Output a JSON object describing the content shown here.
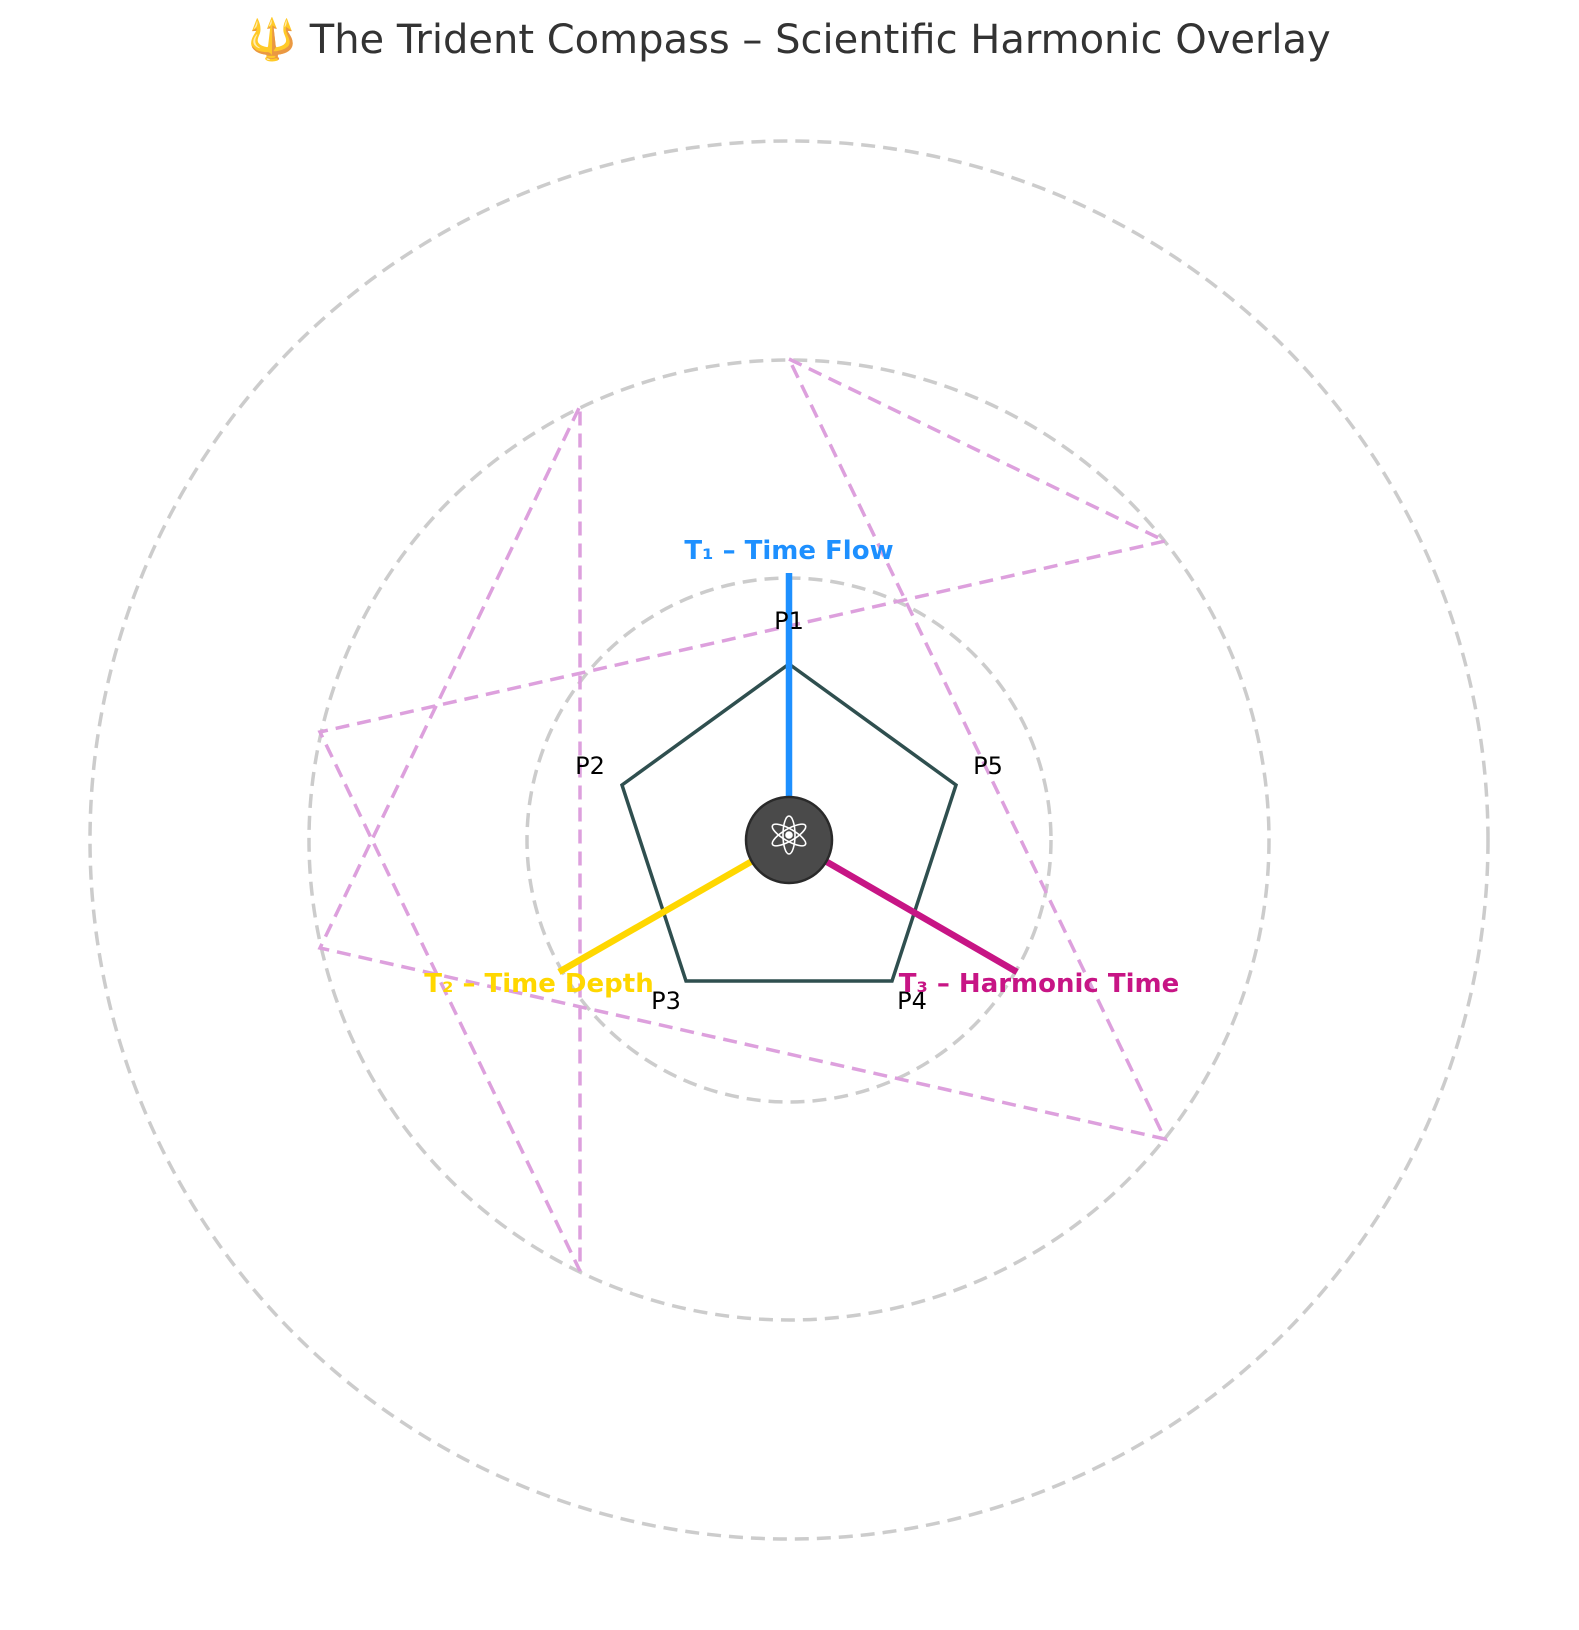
{
  "title": "🔱 The Trident Compass – Scientific Harmonic Overlay",
  "center_icon": "atom-icon",
  "pentagon": {
    "vertex_labels": [
      "P1",
      "P2",
      "P3",
      "P4",
      "P5"
    ],
    "color": "#2f4f4f"
  },
  "axes": [
    {
      "label": "T₁ – Time Flow",
      "color": "#1e90ff",
      "direction": "up"
    },
    {
      "label": "T₂ – Time Depth",
      "color": "#ffd700",
      "direction": "down-left"
    },
    {
      "label": "T₃ – Harmonic Time",
      "color": "#c71585",
      "direction": "down-right"
    }
  ],
  "colors": {
    "rings": "#cccccc",
    "star": "#dda0dd",
    "hub": "#4a4a4a"
  }
}
